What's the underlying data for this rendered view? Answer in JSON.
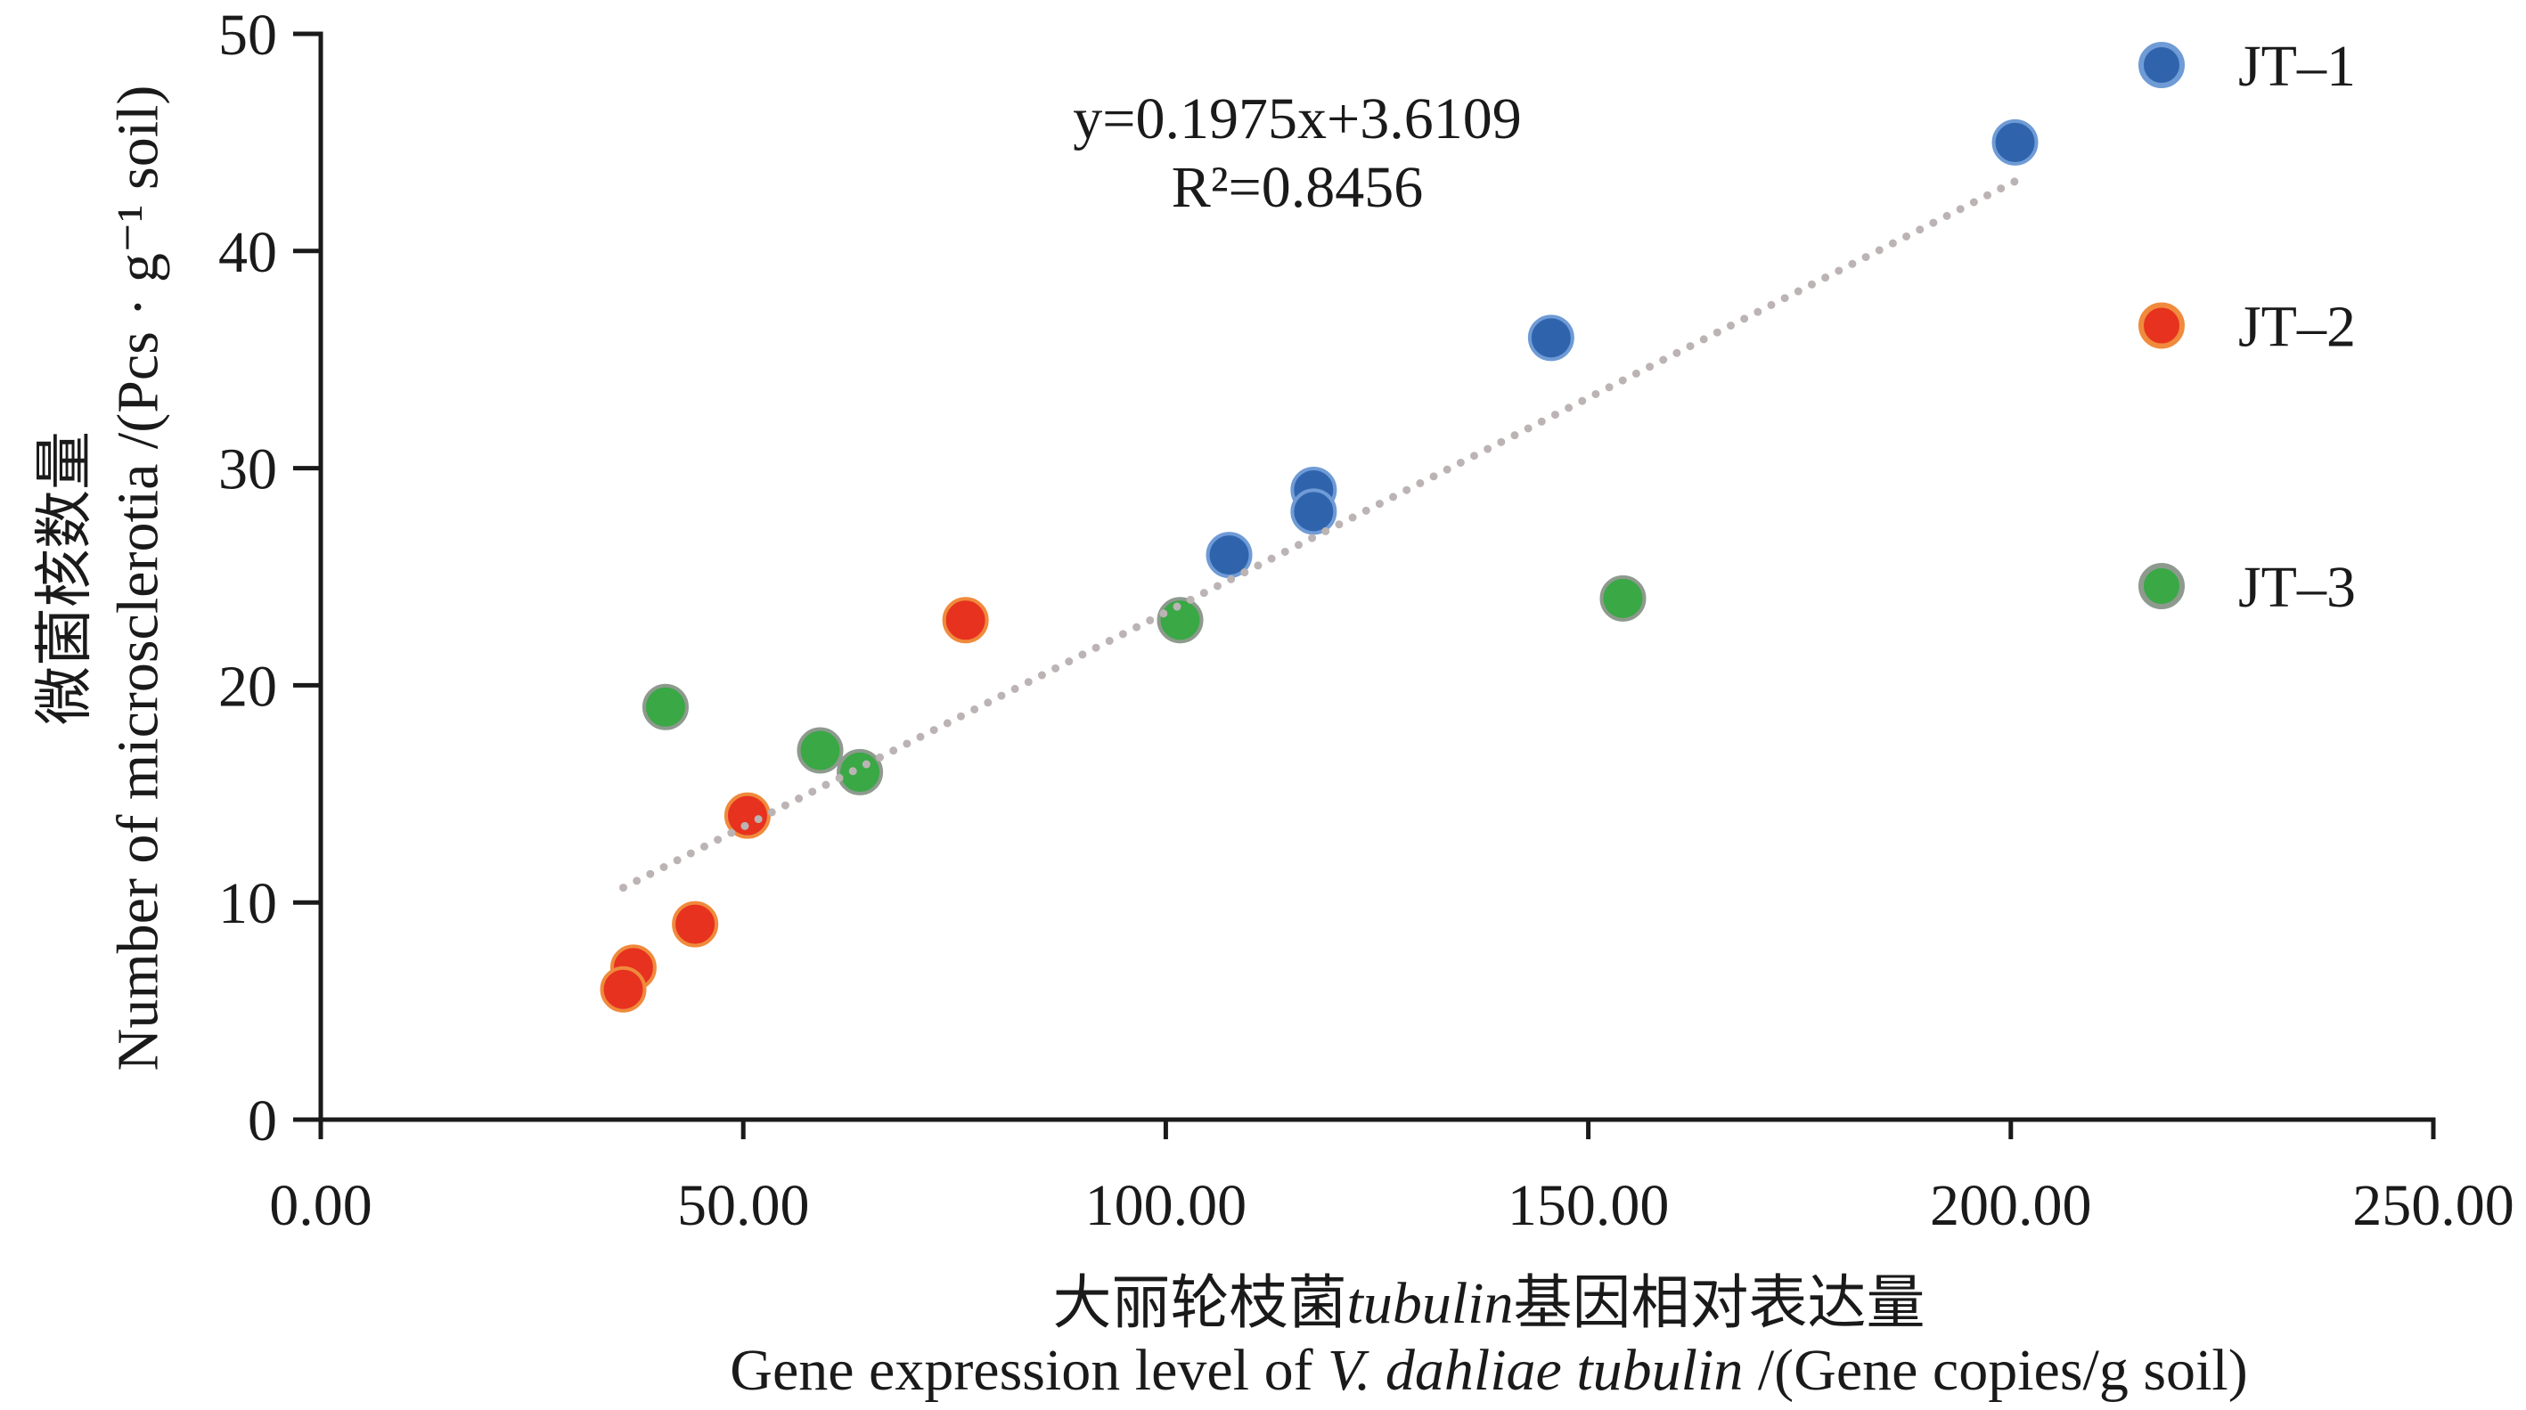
{
  "chart_data": {
    "type": "scatter",
    "xlabel": {
      "line1": [
        "大丽轮枝菌",
        "tubulin",
        "基因相对表达量"
      ],
      "line2": [
        "Gene expression level of ",
        "V. dahliae tubulin",
        " /(Gene copies/g soil)"
      ]
    },
    "ylabel": {
      "line1": "微菌核数量",
      "line2": "Number of microsclerotia /(Pcs · g⁻¹ soil)"
    },
    "xlim": [
      0,
      250
    ],
    "ylim": [
      0,
      50
    ],
    "x_ticks": [
      "0.00",
      "50.00",
      "100.00",
      "150.00",
      "200.00",
      "250.00"
    ],
    "y_ticks": [
      "0",
      "10",
      "20",
      "30",
      "40",
      "50"
    ],
    "grid": false,
    "legend_position": "right",
    "series": [
      {
        "name": "JT–1",
        "color": "#2f64ad",
        "edge": "#6f9bd6",
        "x": [
          200.5,
          145.6,
          117.5,
          117.5,
          107.5
        ],
        "y": [
          45,
          36,
          29,
          28,
          26
        ]
      },
      {
        "name": "JT–2",
        "color": "#e6321f",
        "edge": "#f08a3c",
        "x": [
          76.3,
          50.5,
          44.3,
          37.0,
          35.8
        ],
        "y": [
          23,
          14,
          9,
          7,
          6
        ]
      },
      {
        "name": "JT–3",
        "color": "#39a845",
        "edge": "#8e9a8e",
        "x": [
          40.8,
          59.1,
          63.8,
          101.7,
          154.1
        ],
        "y": [
          19,
          17,
          16,
          23,
          24
        ]
      }
    ],
    "trendline": {
      "type": "linear",
      "slope": 0.1975,
      "intercept": 3.6109,
      "equation": "y=0.1975x+3.6109",
      "r_squared": "R²=0.8456",
      "style": "dotted",
      "color": "#bcb4b4"
    }
  }
}
